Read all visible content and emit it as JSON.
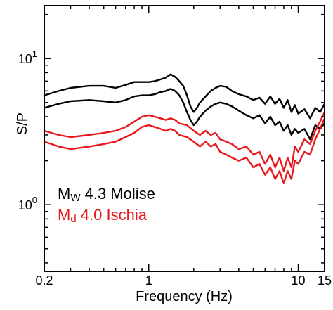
{
  "chart_data": {
    "type": "line",
    "title": "",
    "xlabel": "Frequency (Hz)",
    "ylabel": "S/P",
    "x_scale": "log",
    "y_scale": "log",
    "xlim": [
      0.2,
      15
    ],
    "ylim": [
      0.35,
      23
    ],
    "x_tick_labels": [
      "0.2",
      "1",
      "10",
      "15"
    ],
    "y_tick_labels": [
      {
        "base": "10",
        "exp": "1"
      },
      {
        "base": "10",
        "exp": "0"
      }
    ],
    "grid": false,
    "legend": [
      {
        "prefix": "M",
        "sub": "W",
        "rest": " 4.3 Molise",
        "color": "#000000"
      },
      {
        "prefix": "M",
        "sub": "d",
        "rest": " 4.0 Ischia",
        "color": "#e8191c"
      }
    ],
    "series": [
      {
        "color": "#000000",
        "x": [
          0.2,
          0.25,
          0.3,
          0.4,
          0.5,
          0.6,
          0.7,
          0.8,
          0.9,
          1.0,
          1.1,
          1.2,
          1.3,
          1.4,
          1.5,
          1.6,
          1.7,
          1.8,
          1.9,
          2.0,
          2.1,
          2.2,
          2.4,
          2.6,
          2.8,
          3.0,
          3.3,
          3.6,
          4.0,
          4.5,
          5.0,
          5.5,
          6.0,
          6.5,
          7.0,
          7.5,
          8.0,
          8.5,
          9.0,
          9.5,
          10,
          11,
          12,
          13,
          14,
          15
        ],
        "values": [
          5.6,
          6.0,
          6.3,
          6.5,
          6.5,
          6.3,
          6.6,
          6.9,
          6.9,
          6.9,
          7.0,
          7.2,
          7.4,
          7.8,
          7.5,
          7.0,
          6.5,
          5.6,
          4.7,
          4.3,
          4.6,
          5.0,
          5.5,
          6.0,
          6.3,
          6.5,
          6.4,
          6.0,
          5.7,
          5.5,
          5.2,
          5.4,
          4.9,
          5.5,
          4.9,
          5.3,
          4.6,
          5.2,
          4.3,
          4.8,
          4.2,
          4.5,
          3.9,
          4.6,
          4.3,
          4.9
        ]
      },
      {
        "color": "#000000",
        "x": [
          0.2,
          0.25,
          0.3,
          0.4,
          0.5,
          0.6,
          0.7,
          0.8,
          0.9,
          1.0,
          1.1,
          1.2,
          1.3,
          1.4,
          1.5,
          1.6,
          1.7,
          1.8,
          1.9,
          2.0,
          2.1,
          2.2,
          2.4,
          2.6,
          2.8,
          3.0,
          3.3,
          3.6,
          4.0,
          4.5,
          5.0,
          5.5,
          6.0,
          6.5,
          7.0,
          7.5,
          8.0,
          8.5,
          9.0,
          9.5,
          10,
          11,
          12,
          13,
          14,
          15
        ],
        "values": [
          4.6,
          4.9,
          5.1,
          5.2,
          5.1,
          5.0,
          5.2,
          5.5,
          5.6,
          5.6,
          5.7,
          5.9,
          6.0,
          6.2,
          6.0,
          5.6,
          5.0,
          4.3,
          3.8,
          3.5,
          3.7,
          4.0,
          4.4,
          4.7,
          4.9,
          5.0,
          4.9,
          4.7,
          4.4,
          4.1,
          3.9,
          4.1,
          3.6,
          4.0,
          3.5,
          3.7,
          3.2,
          3.5,
          3.0,
          3.3,
          3.1,
          3.3,
          2.8,
          3.5,
          3.3,
          3.6
        ]
      },
      {
        "color": "#e8191c",
        "x": [
          0.2,
          0.25,
          0.3,
          0.4,
          0.5,
          0.6,
          0.7,
          0.8,
          0.9,
          1.0,
          1.1,
          1.2,
          1.3,
          1.4,
          1.5,
          1.6,
          1.8,
          2.0,
          2.2,
          2.4,
          2.6,
          2.8,
          3.0,
          3.3,
          3.6,
          4.0,
          4.5,
          5.0,
          5.5,
          6.0,
          6.5,
          7.0,
          7.5,
          8.0,
          8.5,
          9.0,
          9.5,
          10,
          11,
          12,
          13,
          14,
          15
        ],
        "values": [
          3.2,
          3.0,
          2.9,
          3.0,
          3.1,
          3.2,
          3.4,
          3.7,
          4.0,
          4.1,
          4.0,
          3.9,
          3.8,
          3.9,
          3.8,
          3.6,
          3.5,
          3.2,
          3.0,
          3.2,
          3.0,
          3.1,
          2.8,
          2.7,
          2.6,
          2.4,
          2.5,
          2.2,
          2.3,
          1.9,
          2.2,
          1.8,
          2.1,
          1.7,
          2.1,
          1.8,
          2.5,
          2.3,
          2.8,
          2.6,
          3.2,
          3.7,
          4.3
        ]
      },
      {
        "color": "#e8191c",
        "x": [
          0.2,
          0.25,
          0.3,
          0.4,
          0.5,
          0.6,
          0.7,
          0.8,
          0.9,
          1.0,
          1.1,
          1.2,
          1.3,
          1.4,
          1.5,
          1.6,
          1.8,
          2.0,
          2.2,
          2.4,
          2.6,
          2.8,
          3.0,
          3.3,
          3.6,
          4.0,
          4.5,
          5.0,
          5.5,
          6.0,
          6.5,
          7.0,
          7.5,
          8.0,
          8.5,
          9.0,
          9.5,
          10,
          11,
          12,
          13,
          14,
          15
        ],
        "values": [
          2.7,
          2.5,
          2.4,
          2.5,
          2.6,
          2.7,
          2.9,
          3.1,
          3.4,
          3.5,
          3.4,
          3.3,
          3.2,
          3.3,
          3.2,
          3.0,
          2.9,
          2.7,
          2.5,
          2.7,
          2.5,
          2.6,
          2.3,
          2.2,
          2.1,
          2.0,
          2.1,
          1.8,
          1.9,
          1.6,
          1.8,
          1.5,
          1.7,
          1.4,
          1.7,
          1.5,
          2.0,
          1.9,
          2.3,
          2.2,
          2.8,
          3.3,
          3.9
        ]
      }
    ]
  }
}
